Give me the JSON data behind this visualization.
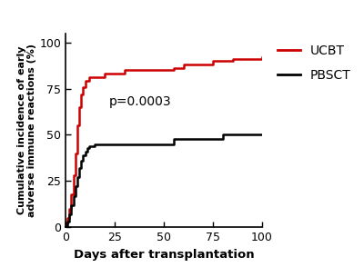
{
  "title": "",
  "xlabel": "Days after transplantation",
  "ylabel": "Cumulative incidence of early\nadverse immune reactions (%)",
  "pvalue_text": "p=0.0003",
  "pvalue_x": 22,
  "pvalue_y": 68,
  "xlim": [
    0,
    100
  ],
  "ylim": [
    0,
    105
  ],
  "xticks": [
    0,
    25,
    50,
    75,
    100
  ],
  "yticks": [
    0,
    25,
    50,
    75,
    100
  ],
  "ucbt_color": "#cc0000",
  "pbsct_color": "#000000",
  "legend_ucbt": "UCBT",
  "legend_pbsct": "PBSCT",
  "ucbt_x": [
    0,
    0.5,
    1,
    2,
    3,
    4,
    5,
    6,
    7,
    8,
    9,
    10,
    12,
    20,
    30,
    55,
    60,
    75,
    85,
    100
  ],
  "ucbt_y": [
    0,
    2,
    5,
    10,
    18,
    28,
    40,
    55,
    65,
    72,
    76,
    79,
    81,
    83,
    85,
    86,
    88,
    90,
    91,
    92
  ],
  "pbsct_x": [
    0,
    1,
    2,
    3,
    4,
    5,
    6,
    7,
    8,
    9,
    10,
    11,
    12,
    15,
    55,
    80,
    100
  ],
  "pbsct_y": [
    0,
    3,
    7,
    12,
    17,
    22,
    27,
    32,
    36,
    39,
    41,
    43,
    44,
    45,
    48,
    50,
    50
  ]
}
